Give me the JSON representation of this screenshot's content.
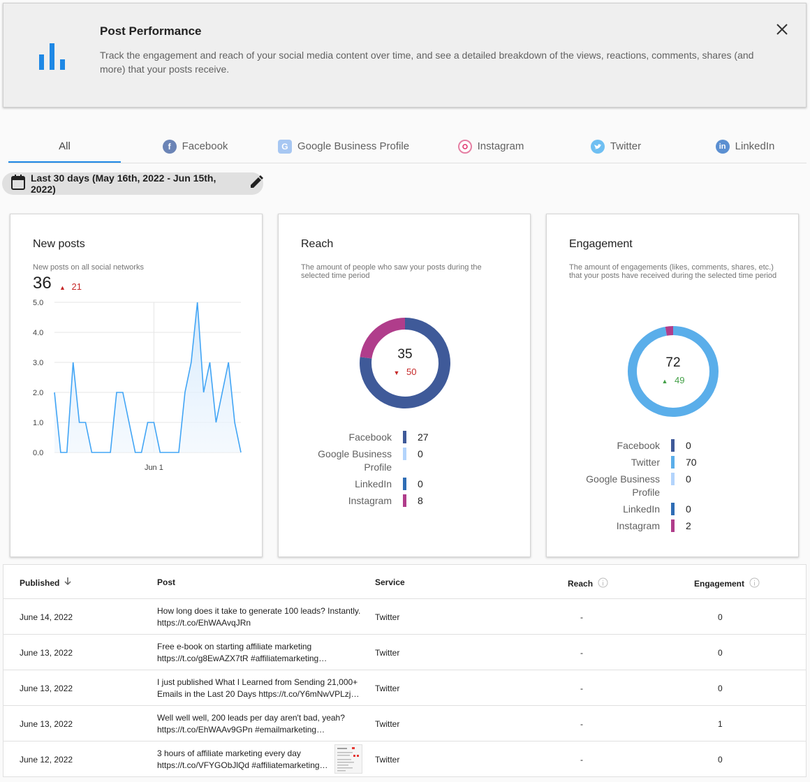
{
  "banner": {
    "title": "Post Performance",
    "description": "Track the engagement and reach of your social media content over time, and see a detailed breakdown of the views, reactions, comments, shares (and more) that your posts receive.",
    "icon": "bar-chart-icon",
    "close_icon": "close-icon"
  },
  "tabs": [
    {
      "label": "All",
      "icon": "",
      "active": true
    },
    {
      "label": "Facebook",
      "icon": "facebook-icon",
      "color": "#3b5998"
    },
    {
      "label": "Google Business Profile",
      "icon": "google-business-icon",
      "color": "#4285f4"
    },
    {
      "label": "Instagram",
      "icon": "instagram-icon",
      "color": "#e1306c"
    },
    {
      "label": "Twitter",
      "icon": "twitter-icon",
      "color": "#1da1f2"
    },
    {
      "label": "LinkedIn",
      "icon": "linkedin-icon",
      "color": "#0a66c2"
    }
  ],
  "date_range": {
    "label": "Last 30 days (May 16th, 2022 - Jun 15th, 2022)"
  },
  "new_posts": {
    "title": "New posts",
    "subtitle": "New posts on all social networks",
    "value": "36",
    "delta": "21",
    "delta_dir": "up",
    "chart_data": {
      "type": "area",
      "x_tick_labels": [
        "Jun 1"
      ],
      "y_tick_labels": [
        "5.0",
        "4.0",
        "3.0",
        "2.0",
        "1.0",
        "0.0"
      ],
      "ylim": [
        0,
        5
      ],
      "values": [
        2,
        0,
        0,
        3,
        1,
        1,
        0,
        0,
        0,
        0,
        2,
        2,
        1,
        0,
        0,
        1,
        1,
        0,
        0,
        0,
        0,
        2,
        3,
        5,
        2,
        3,
        1,
        2,
        3,
        1,
        0
      ],
      "grid": true
    }
  },
  "reach": {
    "title": "Reach",
    "subtitle": "The amount of people who saw your posts during the selected time period",
    "value": "35",
    "delta": "50",
    "delta_dir": "down",
    "legend": [
      {
        "name": "Facebook",
        "value": "27",
        "color": "#3f5a99"
      },
      {
        "name": "Google Business Profile",
        "value": "0",
        "color": "#b3d4fc"
      },
      {
        "name": "LinkedIn",
        "value": "0",
        "color": "#2f6db5"
      },
      {
        "name": "Instagram",
        "value": "8",
        "color": "#b03d8b"
      }
    ],
    "chart_data": {
      "type": "pie",
      "labels": [
        "Facebook",
        "Google Business Profile",
        "LinkedIn",
        "Instagram"
      ],
      "values": [
        27,
        0,
        0,
        8
      ]
    }
  },
  "engagement": {
    "title": "Engagement",
    "subtitle": "The amount of engagements (likes, comments, shares, etc.) that your posts have received during the selected time period",
    "value": "72",
    "delta": "49",
    "delta_dir": "up",
    "legend": [
      {
        "name": "Facebook",
        "value": "0",
        "color": "#3f5a99"
      },
      {
        "name": "Twitter",
        "value": "70",
        "color": "#5aaeea"
      },
      {
        "name": "Google Business Profile",
        "value": "0",
        "color": "#b3d4fc"
      },
      {
        "name": "LinkedIn",
        "value": "0",
        "color": "#2f6db5"
      },
      {
        "name": "Instagram",
        "value": "2",
        "color": "#b03d8b"
      }
    ],
    "chart_data": {
      "type": "pie",
      "labels": [
        "Facebook",
        "Twitter",
        "Google Business Profile",
        "LinkedIn",
        "Instagram"
      ],
      "values": [
        0,
        70,
        0,
        0,
        2
      ]
    }
  },
  "table": {
    "headers": {
      "published": "Published",
      "post": "Post",
      "service": "Service",
      "reach": "Reach",
      "engagement": "Engagement"
    },
    "rows": [
      {
        "published": "June 14, 2022",
        "line1": "How long does it take to generate 100 leads? Instantly.",
        "line2": "https://t.co/EhWAAvqJRn",
        "service": "Twitter",
        "reach": "-",
        "engagement": "0",
        "thumb": false
      },
      {
        "published": "June 13, 2022",
        "line1": "Free e-book on starting affiliate marketing",
        "line2": "https://t.co/g8EwAZX7tR #affiliatemarketing…",
        "service": "Twitter",
        "reach": "-",
        "engagement": "0",
        "thumb": false
      },
      {
        "published": "June 13, 2022",
        "line1": "I just published What I Learned from Sending 21,000+",
        "line2": "Emails in the Last 20 Days https://t.co/Y6mNwVPLzj…",
        "service": "Twitter",
        "reach": "-",
        "engagement": "0",
        "thumb": false
      },
      {
        "published": "June 13, 2022",
        "line1": "Well well well, 200 leads per day aren't bad, yeah?",
        "line2": "https://t.co/EhWAAv9GPn #emailmarketing…",
        "service": "Twitter",
        "reach": "-",
        "engagement": "1",
        "thumb": false
      },
      {
        "published": "June 12, 2022",
        "line1": "3 hours of affiliate marketing every day",
        "line2": "https://t.co/VFYGObJlQd #affiliatemarketing…",
        "service": "Twitter",
        "reach": "-",
        "engagement": "0",
        "thumb": true
      }
    ]
  }
}
